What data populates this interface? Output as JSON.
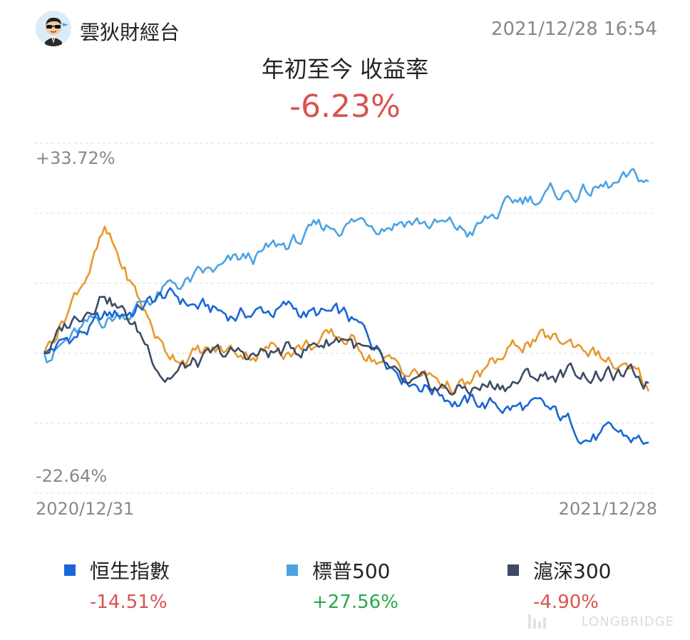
{
  "header": {
    "author": "雲狄財經台",
    "timestamp": "2021/12/28 16:54",
    "avatar_icon": "avatar-sunglasses-icon"
  },
  "title": "年初至今 收益率",
  "return_value": "-6.23%",
  "chart_data": {
    "type": "line",
    "y_max_label": "+33.72%",
    "y_min_label": "-22.64%",
    "ylim": [
      -22.64,
      33.72
    ],
    "x_start_label": "2020/12/31",
    "x_end_label": "2021/12/28",
    "grid": true,
    "legend_position": "bottom",
    "x": [
      0,
      0.1,
      0.2,
      0.3,
      0.4,
      0.5,
      0.6,
      0.7,
      0.8,
      0.9,
      1
    ],
    "series": [
      {
        "name": "恒生指數",
        "color": "#1a66d6",
        "final": "-14.51%",
        "values": [
          0,
          5,
          9,
          6,
          7,
          5,
          -3,
          -8,
          -9,
          -13,
          -14.5
        ]
      },
      {
        "name": "標普500",
        "color": "#4ba3e3",
        "final": "+27.56%",
        "values": [
          0,
          5,
          10,
          13,
          17,
          21,
          22,
          19,
          25,
          26,
          27.56
        ]
      },
      {
        "name": "滬深300",
        "color": "#3d4b66",
        "final": "-4.90%",
        "values": [
          0,
          11,
          -3,
          -1,
          0,
          3,
          -7,
          -6,
          -4,
          -3,
          -4.9
        ]
      },
      {
        "name": "雲狄財經台",
        "color": "#e8982e",
        "values": [
          0,
          19,
          0,
          0,
          1,
          2,
          -3,
          -6,
          2,
          1,
          -6.23
        ]
      }
    ]
  },
  "legend": [
    {
      "name": "恒生指數",
      "value": "-14.51%",
      "color": "#1a66d6",
      "sign": "neg"
    },
    {
      "name": "標普500",
      "value": "+27.56%",
      "color": "#4ba3e3",
      "sign": "pos"
    },
    {
      "name": "滬深300",
      "value": "-4.90%",
      "color": "#3d4b66",
      "sign": "neg"
    }
  ],
  "watermark": "LONGBRIDGE"
}
